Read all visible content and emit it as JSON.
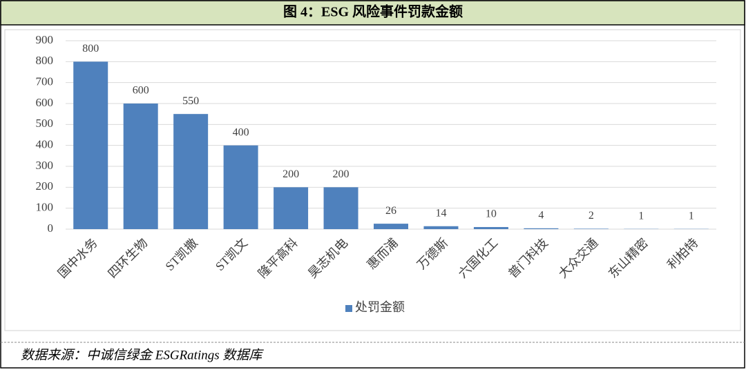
{
  "chart_data": {
    "type": "bar",
    "title": "图 4：ESG 风险事件罚款金额",
    "categories": [
      "国中水务",
      "四环生物",
      "ST凯撒",
      "ST凯文",
      "隆平高科",
      "昊志机电",
      "惠而浦",
      "万德斯",
      "六国化工",
      "普门科技",
      "大众交通",
      "东山精密",
      "利柏特"
    ],
    "series": [
      {
        "name": "处罚金额",
        "color": "#4f81bd",
        "values": [
          800,
          600,
          550,
          400,
          200,
          200,
          26,
          14,
          10,
          4,
          2,
          1,
          1
        ]
      }
    ],
    "ylim": [
      0,
      900
    ],
    "yticks": [
      0,
      100,
      200,
      300,
      400,
      500,
      600,
      700,
      800,
      900
    ],
    "grid": true,
    "legend": "bottom"
  },
  "source": "数据来源：中诚信绿金 ESGRatings 数据库"
}
